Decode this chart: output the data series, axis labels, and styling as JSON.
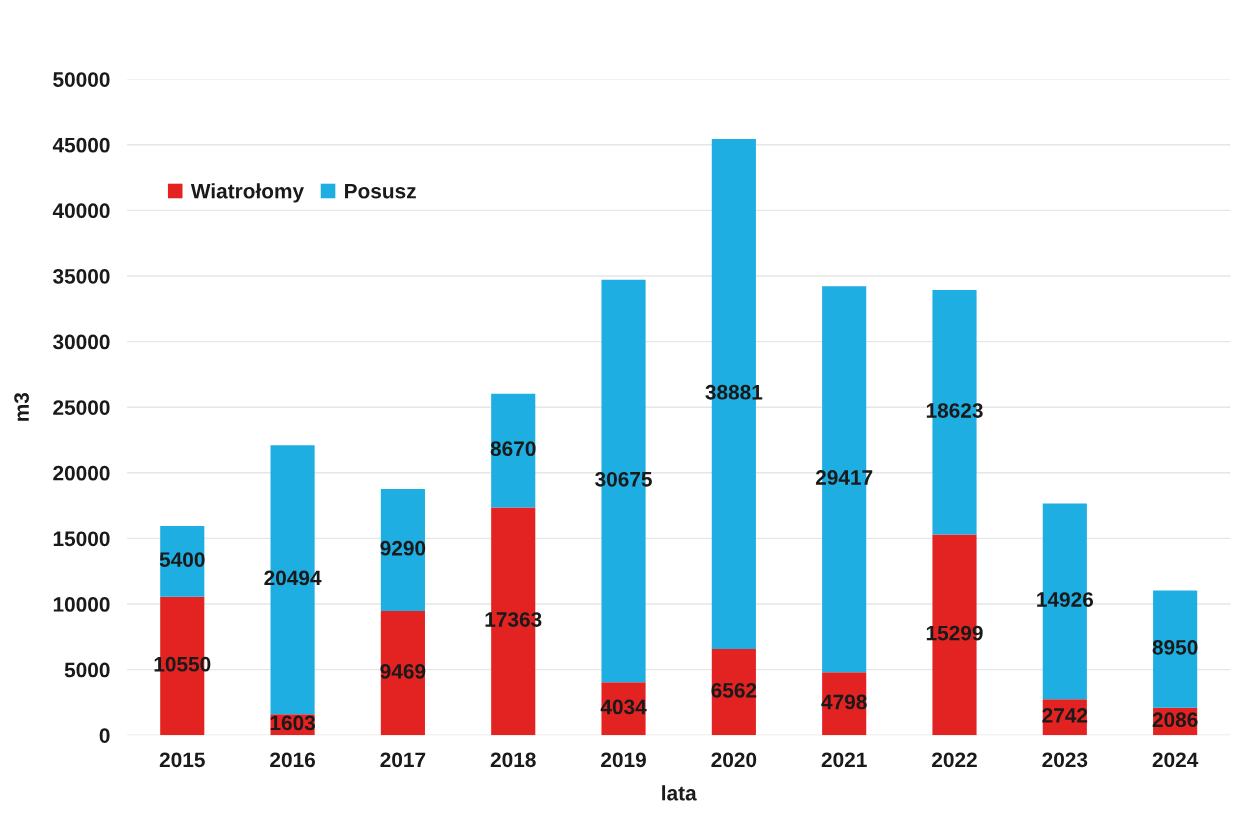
{
  "chart_data": {
    "type": "bar",
    "stacked": true,
    "xlabel": "lata",
    "ylabel": "m3",
    "categories": [
      "2015",
      "2016",
      "2017",
      "2018",
      "2019",
      "2020",
      "2021",
      "2022",
      "2023",
      "2024"
    ],
    "series": [
      {
        "name": "Wiatrołomy",
        "color": "#e32322",
        "values": [
          10550,
          1603,
          9469,
          17363,
          4034,
          6562,
          4798,
          15299,
          2742,
          2086
        ]
      },
      {
        "name": "Posusz",
        "color": "#1eaee2",
        "values": [
          5400,
          20494,
          9290,
          8670,
          30675,
          38881,
          29417,
          18623,
          14926,
          8950
        ]
      }
    ],
    "ylim": [
      0,
      50000
    ],
    "yticks": [
      0,
      5000,
      10000,
      15000,
      20000,
      25000,
      30000,
      35000,
      40000,
      45000,
      50000
    ],
    "grid": "y",
    "legend": "top left",
    "data_labels": true
  }
}
